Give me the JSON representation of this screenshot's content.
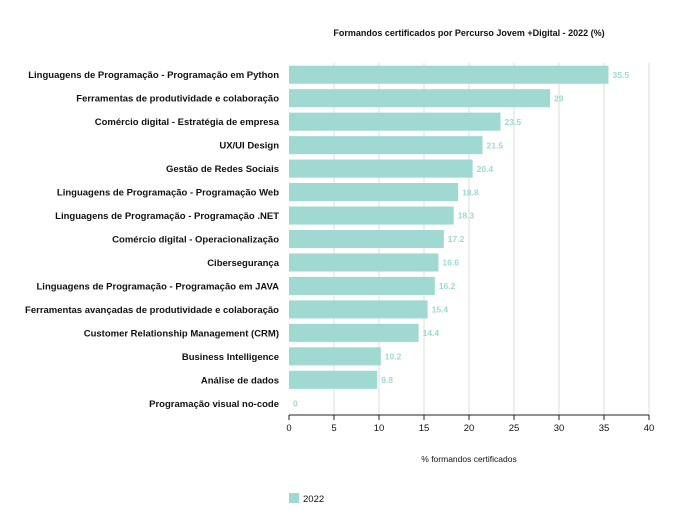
{
  "chart_data": {
    "type": "bar",
    "orientation": "horizontal",
    "title": "Formandos certificados por Percurso Jovem +Digital - 2022 (%)",
    "xlabel": "% formandos certificados",
    "ylabel": "",
    "xlim": [
      0,
      40
    ],
    "x_ticks": [
      "0",
      "5",
      "10",
      "15",
      "20",
      "25",
      "30",
      "35",
      "40"
    ],
    "grid": "vertical",
    "legend_position": "bottom-left",
    "categories": [
      "Linguagens de Programação - Programação em Python",
      "Ferramentas de produtividade e colaboração",
      "Comércio digital - Estratégia de empresa",
      "UX/UI Design",
      "Gestão de Redes Sociais",
      "Linguagens de Programação - Programação Web",
      "Linguagens de Programação - Programação .NET",
      "Comércio digital - Operacionalização",
      "Cibersegurança",
      "Linguagens de Programação - Programação em JAVA",
      "Ferramentas avançadas de produtividade e colaboração",
      "Customer Relationship Management (CRM)",
      "Business Intelligence",
      "Análise de dados",
      "Programação visual no-code"
    ],
    "series": [
      {
        "name": "2022",
        "color": "#9fd9d1",
        "values": [
          35.5,
          29,
          23.5,
          21.5,
          20.4,
          18.8,
          18.3,
          17.2,
          16.6,
          16.2,
          15.4,
          14.4,
          10.2,
          9.8,
          0
        ],
        "labels": [
          "35.5",
          "29",
          "23.5",
          "21.5",
          "20.4",
          "18.8",
          "18.3",
          "17.2",
          "16.6",
          "16.2",
          "15.4",
          "14.4",
          "10.2",
          "9.8",
          "0"
        ]
      }
    ],
    "label_color": "#9fd9d1"
  }
}
